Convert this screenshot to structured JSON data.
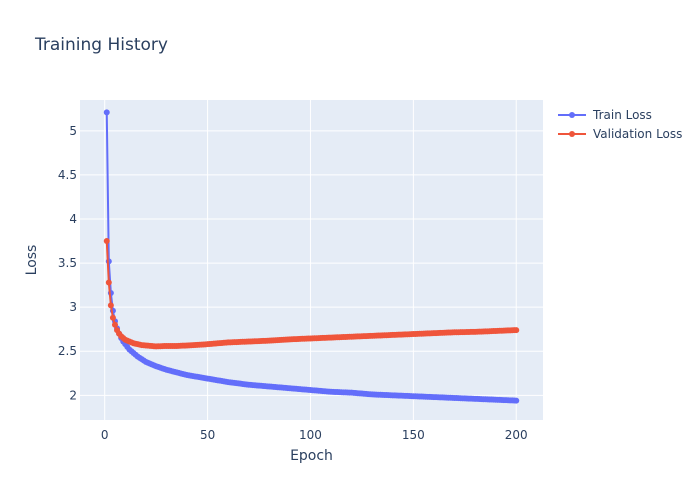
{
  "chart_data": {
    "type": "line",
    "title": "Training History",
    "xlabel": "Epoch",
    "ylabel": "Loss",
    "xlim": [
      -12,
      213
    ],
    "ylim": [
      1.72,
      5.35
    ],
    "xticks": [
      0,
      50,
      100,
      150,
      200
    ],
    "yticks": [
      2,
      2.5,
      3,
      3.5,
      4,
      4.5,
      5
    ],
    "ytick_labels": [
      "2",
      "2.5",
      "3",
      "3.5",
      "4",
      "4.5",
      "5"
    ],
    "grid": true,
    "legend_position": "top-right",
    "series": [
      {
        "name": "Train Loss",
        "color": "#636efa",
        "x": [
          1,
          2,
          3,
          4,
          5,
          6,
          7,
          8,
          9,
          10,
          12,
          14,
          16,
          18,
          20,
          25,
          30,
          35,
          40,
          50,
          60,
          70,
          80,
          90,
          100,
          110,
          120,
          130,
          140,
          150,
          160,
          170,
          180,
          190,
          200
        ],
        "y": [
          5.21,
          3.52,
          3.16,
          2.96,
          2.84,
          2.76,
          2.7,
          2.65,
          2.61,
          2.58,
          2.52,
          2.48,
          2.44,
          2.41,
          2.38,
          2.33,
          2.29,
          2.26,
          2.23,
          2.19,
          2.15,
          2.12,
          2.1,
          2.08,
          2.06,
          2.04,
          2.03,
          2.01,
          2.0,
          1.99,
          1.98,
          1.97,
          1.96,
          1.95,
          1.94
        ]
      },
      {
        "name": "Validation Loss",
        "color": "#ef553b",
        "x": [
          1,
          2,
          3,
          4,
          5,
          6,
          7,
          8,
          9,
          10,
          12,
          14,
          16,
          18,
          20,
          25,
          30,
          35,
          40,
          50,
          60,
          70,
          80,
          90,
          100,
          110,
          120,
          130,
          140,
          150,
          160,
          170,
          180,
          190,
          200
        ],
        "y": [
          3.75,
          3.28,
          3.02,
          2.88,
          2.8,
          2.74,
          2.7,
          2.67,
          2.65,
          2.63,
          2.61,
          2.59,
          2.58,
          2.57,
          2.565,
          2.555,
          2.56,
          2.56,
          2.565,
          2.58,
          2.6,
          2.61,
          2.62,
          2.635,
          2.645,
          2.655,
          2.665,
          2.675,
          2.685,
          2.695,
          2.705,
          2.715,
          2.72,
          2.73,
          2.74
        ]
      }
    ]
  }
}
